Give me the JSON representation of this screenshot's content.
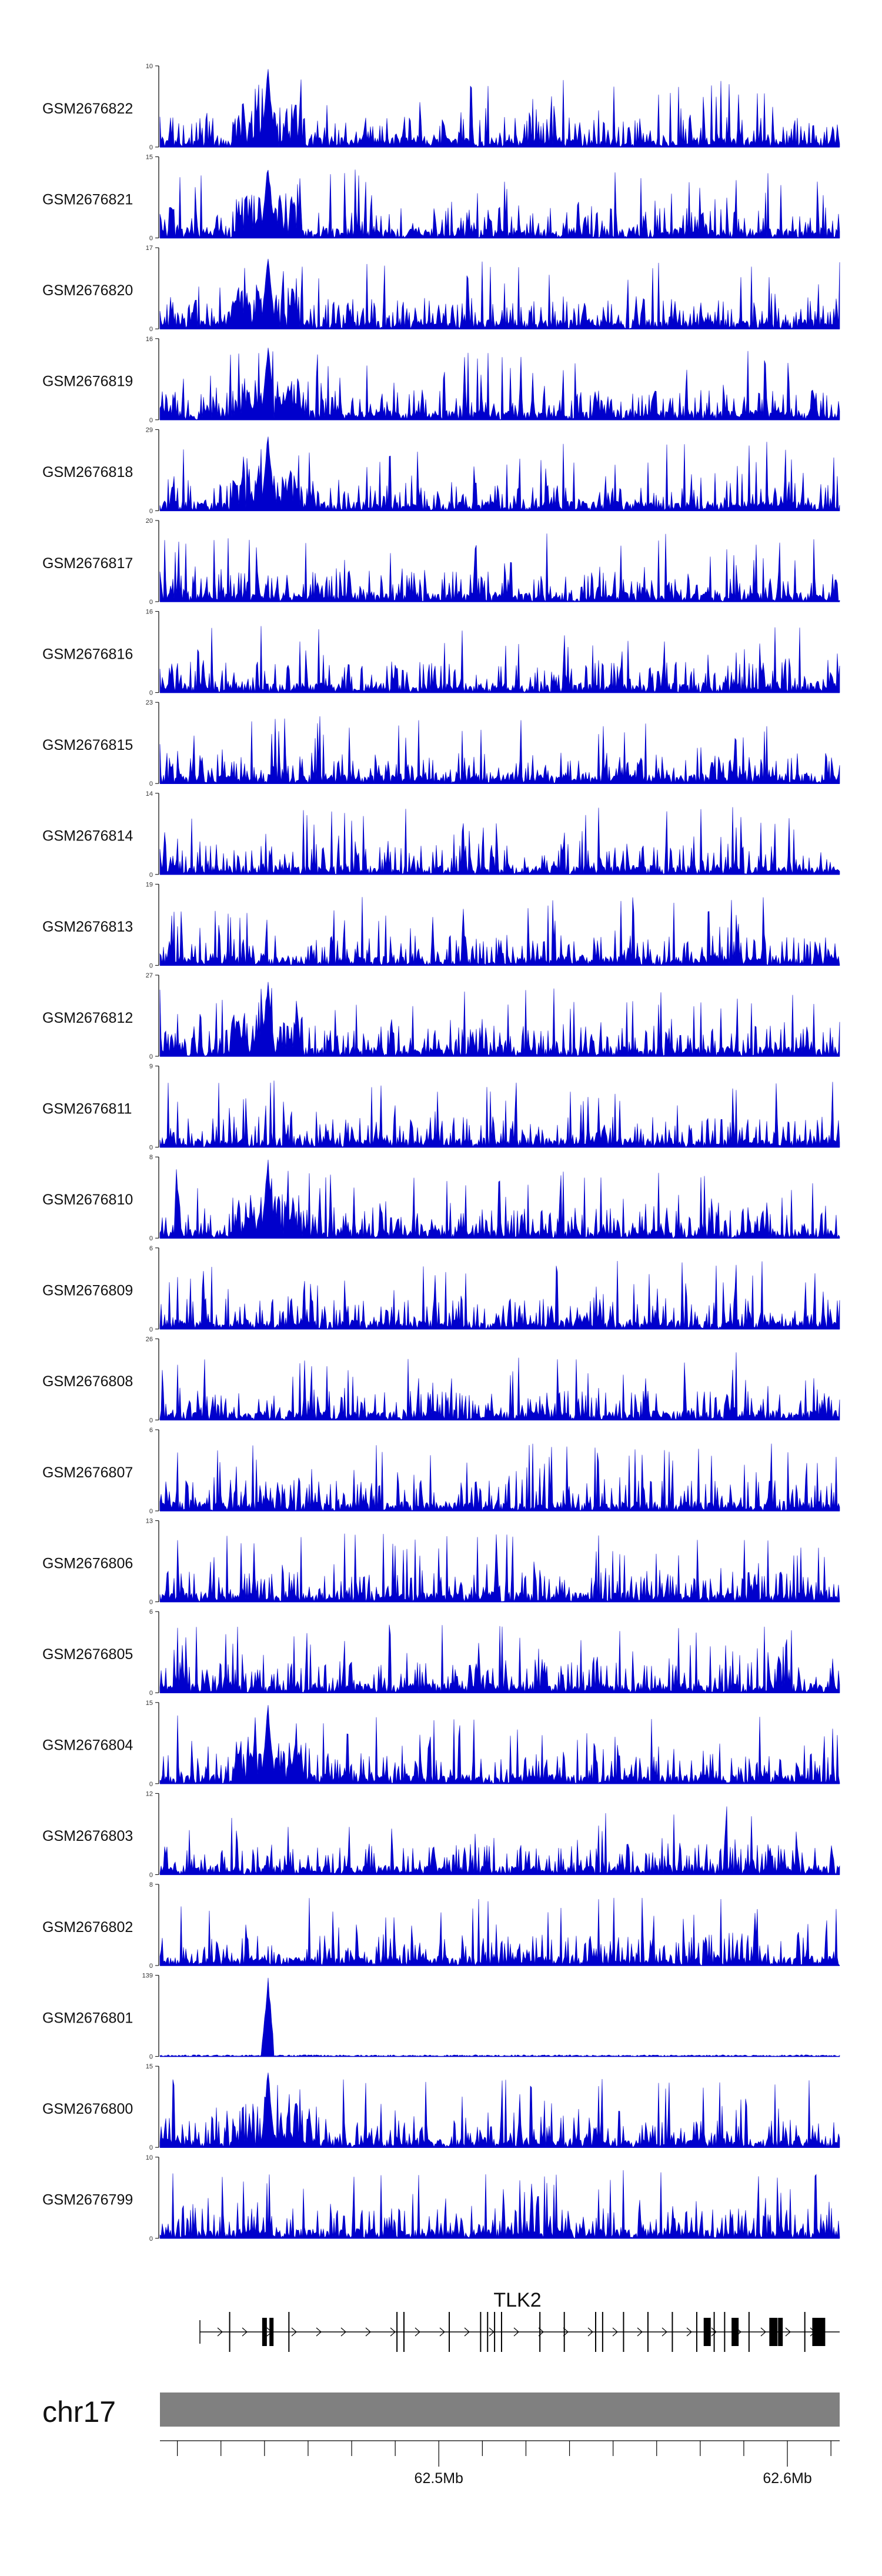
{
  "chart_data": {
    "type": "area",
    "chromosome": "chr17",
    "genomic_range": [
      62.42,
      62.615
    ],
    "gene": {
      "name": "TLK2",
      "exons": [
        62.44,
        62.45,
        62.452,
        62.457,
        62.488,
        62.49,
        62.503,
        62.512,
        62.514,
        62.516,
        62.518,
        62.529,
        62.536,
        62.545,
        62.547,
        62.553,
        62.56,
        62.567,
        62.574,
        62.577,
        62.579,
        62.582,
        62.585,
        62.589,
        62.596,
        62.598,
        62.605,
        62.609
      ]
    },
    "position_ticks": [
      {
        "value": 62.5,
        "label": "62.5Mb"
      },
      {
        "value": 62.6,
        "label": "62.6Mb"
      }
    ],
    "series": [
      {
        "name": "GSM2676822",
        "ymax": 10,
        "ymax_label": "10",
        "ymin_label": "0",
        "peak": 62.451
      },
      {
        "name": "GSM2676821",
        "ymax": 15,
        "ymax_label": "15",
        "ymin_label": "0",
        "peak": 62.451
      },
      {
        "name": "GSM2676820",
        "ymax": 17,
        "ymax_label": "17",
        "ymin_label": "0",
        "peak": 62.451
      },
      {
        "name": "GSM2676819",
        "ymax": 16,
        "ymax_label": "16",
        "ymin_label": "0",
        "peak": 62.451
      },
      {
        "name": "GSM2676818",
        "ymax": 29,
        "ymax_label": "29",
        "ymin_label": "0",
        "peak": 62.451
      },
      {
        "name": "GSM2676817",
        "ymax": 20,
        "ymax_label": "20",
        "ymin_label": "0"
      },
      {
        "name": "GSM2676816",
        "ymax": 16,
        "ymax_label": "16",
        "ymin_label": "0"
      },
      {
        "name": "GSM2676815",
        "ymax": 23,
        "ymax_label": "23",
        "ymin_label": "0"
      },
      {
        "name": "GSM2676814",
        "ymax": 14,
        "ymax_label": "14",
        "ymin_label": "0"
      },
      {
        "name": "GSM2676813",
        "ymax": 19,
        "ymax_label": "19",
        "ymin_label": "0"
      },
      {
        "name": "GSM2676812",
        "ymax": 27,
        "ymax_label": "27",
        "ymin_label": "0",
        "peak": 62.451
      },
      {
        "name": "GSM2676811",
        "ymax": 9,
        "ymax_label": "9",
        "ymin_label": "0"
      },
      {
        "name": "GSM2676810",
        "ymax": 8,
        "ymax_label": "8",
        "ymin_label": "0",
        "peak": 62.451
      },
      {
        "name": "GSM2676809",
        "ymax": 6,
        "ymax_label": "6",
        "ymin_label": "0"
      },
      {
        "name": "GSM2676808",
        "ymax": 26,
        "ymax_label": "26",
        "ymin_label": "0"
      },
      {
        "name": "GSM2676807",
        "ymax": 6,
        "ymax_label": "6",
        "ymin_label": "0"
      },
      {
        "name": "GSM2676806",
        "ymax": 13,
        "ymax_label": "13",
        "ymin_label": "0"
      },
      {
        "name": "GSM2676805",
        "ymax": 6,
        "ymax_label": "6",
        "ymin_label": "0"
      },
      {
        "name": "GSM2676804",
        "ymax": 15,
        "ymax_label": "15",
        "ymin_label": "0",
        "peak": 62.451
      },
      {
        "name": "GSM2676803",
        "ymax": 12,
        "ymax_label": "12",
        "ymin_label": "0"
      },
      {
        "name": "GSM2676802",
        "ymax": 8,
        "ymax_label": "8",
        "ymin_label": "0"
      },
      {
        "name": "GSM2676801",
        "ymax": 139,
        "ymax_label": "139",
        "ymin_label": "0",
        "peak": 62.451
      },
      {
        "name": "GSM2676800",
        "ymax": 15,
        "ymax_label": "15",
        "ymin_label": "0",
        "peak": 62.451
      },
      {
        "name": "GSM2676799",
        "ymax": 10,
        "ymax_label": "10",
        "ymin_label": "0"
      }
    ],
    "colors": {
      "signal": "#0000cc",
      "exon": "#000000",
      "chrom_bar": "#808080",
      "axis": "#000000"
    }
  }
}
